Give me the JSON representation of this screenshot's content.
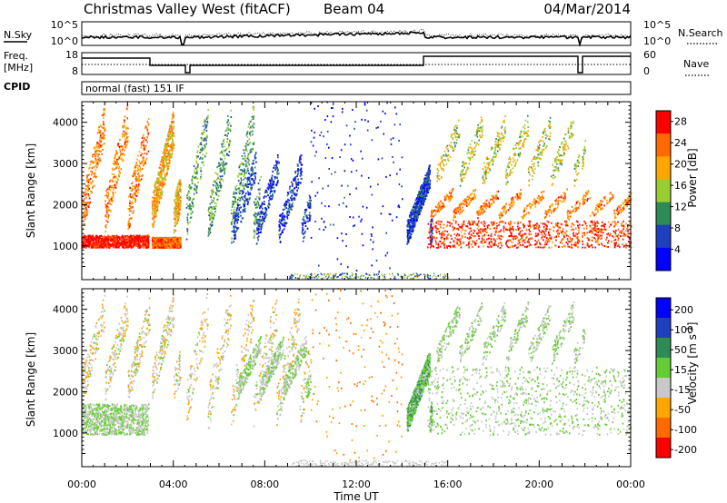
{
  "header": {
    "title": "Christmas Valley West (fitACF)",
    "beam": "Beam 04",
    "date": "04/Mar/2014"
  },
  "status_panels": {
    "nsky_label": "N.Sky",
    "nsearch_label": "N.Search",
    "noise_ticks": [
      "10^5",
      "10^0"
    ],
    "freq_label": [
      "Freq.",
      "[MHz]"
    ],
    "freq_ticks": [
      "18",
      "8"
    ],
    "nave_label": "Nave",
    "nave_ticks": [
      "60",
      "0"
    ],
    "cpid_label": "CPID",
    "cpid_value": "normal (fast) 151 IF"
  },
  "chart_data": [
    {
      "type": "heatmap",
      "panel": "power",
      "ylabel": "Slant Range [km]",
      "xlabel": "Time UT",
      "xlim": [
        0,
        24
      ],
      "ylim": [
        180,
        4500
      ],
      "x_ticks": [
        "00:00",
        "04:00",
        "08:00",
        "12:00",
        "16:00",
        "20:00",
        "00:00"
      ],
      "y_ticks": [
        1000,
        2000,
        3000,
        4000
      ],
      "colorbar": {
        "label": "Power [dB]",
        "ticks": [
          4,
          8,
          12,
          16,
          20,
          24,
          28
        ],
        "range": [
          0,
          30
        ],
        "colors": [
          "#0000ff",
          "#1f3fbf",
          "#2e8b57",
          "#9acd32",
          "#ffa500",
          "#ff6a00",
          "#ff0000"
        ]
      },
      "features": [
        {
          "kind": "band",
          "t_start": 0.0,
          "t_end": 2.9,
          "r_start": 950,
          "r_end": 1250,
          "value": 28
        },
        {
          "kind": "streaks",
          "t_start": 0.0,
          "t_end": 2.9,
          "r_start": 1300,
          "r_end": 4500,
          "value": 22
        },
        {
          "kind": "band",
          "t_start": 3.0,
          "t_end": 4.3,
          "r_start": 950,
          "r_end": 1200,
          "value": 24
        },
        {
          "kind": "streaks",
          "t_start": 3.0,
          "t_end": 4.3,
          "r_start": 1200,
          "r_end": 4300,
          "value": 20
        },
        {
          "kind": "streaks",
          "t_start": 4.5,
          "t_end": 7.8,
          "r_start": 1000,
          "r_end": 4500,
          "value": 12
        },
        {
          "kind": "streaks",
          "t_start": 6.6,
          "t_end": 10.0,
          "r_start": 1000,
          "r_end": 3300,
          "value": 6
        },
        {
          "kind": "sparse",
          "t_start": 10.0,
          "t_end": 14.0,
          "r_start": 300,
          "r_end": 4500,
          "value": 4
        },
        {
          "kind": "streaks",
          "t_start": 14.2,
          "t_end": 15.3,
          "r_start": 1000,
          "r_end": 3000,
          "value": 6
        },
        {
          "kind": "band",
          "t_start": 15.1,
          "t_end": 24.0,
          "r_start": 950,
          "r_end": 1600,
          "value": 26
        },
        {
          "kind": "streaks",
          "t_start": 15.2,
          "t_end": 24.0,
          "r_start": 1600,
          "r_end": 2400,
          "value": 22
        },
        {
          "kind": "streaks",
          "t_start": 15.5,
          "t_end": 22.0,
          "r_start": 2400,
          "r_end": 4200,
          "value": 16
        }
      ],
      "gaps_hours": [
        [
          2.95,
          3.05
        ],
        [
          4.4,
          4.55
        ],
        [
          21.75,
          21.85
        ]
      ]
    },
    {
      "type": "heatmap",
      "panel": "velocity",
      "ylabel": "Slant Range [km]",
      "xlabel": "Time UT",
      "xlim": [
        0,
        24
      ],
      "ylim": [
        180,
        4500
      ],
      "x_ticks": [
        "00:00",
        "04:00",
        "08:00",
        "12:00",
        "16:00",
        "20:00",
        "00:00"
      ],
      "y_ticks": [
        1000,
        2000,
        3000,
        4000
      ],
      "colorbar": {
        "label": "Velocity [m s^-1]",
        "ticks": [
          200,
          100,
          50,
          15,
          -15,
          -50,
          -100,
          -200
        ],
        "range": [
          -250,
          250
        ],
        "colors": [
          "#0000ff",
          "#1f3fbf",
          "#2e8b57",
          "#66cc33",
          "#c8c8c8",
          "#ffa500",
          "#ff6a00",
          "#ff0000"
        ]
      },
      "features": [
        {
          "kind": "band",
          "t_start": 0.0,
          "t_end": 2.9,
          "r_start": 950,
          "r_end": 1700,
          "value": 0
        },
        {
          "kind": "streaks",
          "t_start": 0.0,
          "t_end": 4.3,
          "r_start": 1700,
          "r_end": 4400,
          "value": -40
        },
        {
          "kind": "streaks",
          "t_start": 4.5,
          "t_end": 10.0,
          "r_start": 1000,
          "r_end": 4500,
          "value": -45
        },
        {
          "kind": "streaks",
          "t_start": 6.8,
          "t_end": 10.0,
          "r_start": 1800,
          "r_end": 3400,
          "value": 0
        },
        {
          "kind": "sparse",
          "t_start": 10.0,
          "t_end": 14.0,
          "r_start": 300,
          "r_end": 4500,
          "value": -120
        },
        {
          "kind": "streaks",
          "t_start": 14.2,
          "t_end": 15.3,
          "r_start": 1000,
          "r_end": 3000,
          "value": 40
        },
        {
          "kind": "band",
          "t_start": 15.1,
          "t_end": 24.0,
          "r_start": 950,
          "r_end": 2600,
          "value": 0
        },
        {
          "kind": "streaks",
          "t_start": 15.5,
          "t_end": 22.0,
          "r_start": 2600,
          "r_end": 4200,
          "value": 0
        }
      ],
      "gaps_hours": [
        [
          2.95,
          3.05
        ],
        [
          4.4,
          4.55
        ],
        [
          21.75,
          21.85
        ]
      ]
    }
  ]
}
